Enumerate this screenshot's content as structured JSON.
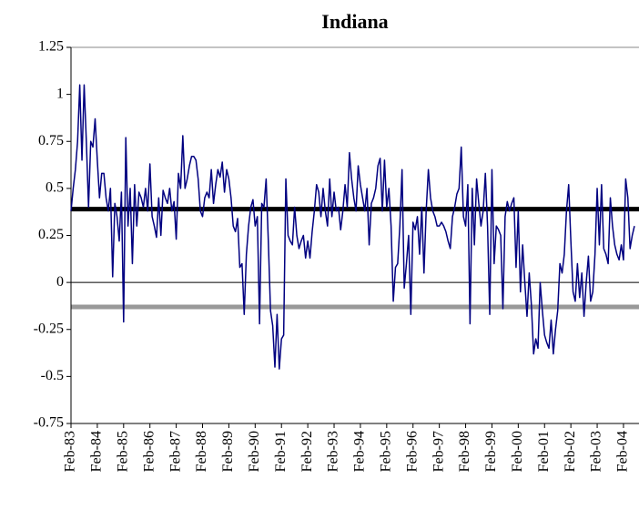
{
  "chart_data": {
    "type": "line",
    "title": "Indiana",
    "categories": [
      "Feb-83",
      null,
      null,
      null,
      null,
      null,
      null,
      null,
      null,
      null,
      null,
      null,
      "Feb-84",
      null,
      null,
      null,
      null,
      null,
      null,
      null,
      null,
      null,
      null,
      null,
      "Feb-85",
      null,
      null,
      null,
      null,
      null,
      null,
      null,
      null,
      null,
      null,
      null,
      "Feb-86",
      null,
      null,
      null,
      null,
      null,
      null,
      null,
      null,
      null,
      null,
      null,
      "Feb-87",
      null,
      null,
      null,
      null,
      null,
      null,
      null,
      null,
      null,
      null,
      null,
      "Feb-88",
      null,
      null,
      null,
      null,
      null,
      null,
      null,
      null,
      null,
      null,
      null,
      "Feb-89",
      null,
      null,
      null,
      null,
      null,
      null,
      null,
      null,
      null,
      null,
      null,
      "Feb-90",
      null,
      null,
      null,
      null,
      null,
      null,
      null,
      null,
      null,
      null,
      null,
      "Feb-91",
      null,
      null,
      null,
      null,
      null,
      null,
      null,
      null,
      null,
      null,
      null,
      "Feb-92",
      null,
      null,
      null,
      null,
      null,
      null,
      null,
      null,
      null,
      null,
      null,
      "Feb-93",
      null,
      null,
      null,
      null,
      null,
      null,
      null,
      null,
      null,
      null,
      null,
      "Feb-94",
      null,
      null,
      null,
      null,
      null,
      null,
      null,
      null,
      null,
      null,
      null,
      "Feb-95",
      null,
      null,
      null,
      null,
      null,
      null,
      null,
      null,
      null,
      null,
      null,
      "Feb-96",
      null,
      null,
      null,
      null,
      null,
      null,
      null,
      null,
      null,
      null,
      null,
      "Feb-97",
      null,
      null,
      null,
      null,
      null,
      null,
      null,
      null,
      null,
      null,
      null,
      "Feb-98",
      null,
      null,
      null,
      null,
      null,
      null,
      null,
      null,
      null,
      null,
      null,
      "Feb-99",
      null,
      null,
      null,
      null,
      null,
      null,
      null,
      null,
      null,
      null,
      null,
      "Feb-00",
      null,
      null,
      null,
      null,
      null,
      null,
      null,
      null,
      null,
      null,
      null,
      "Feb-01",
      null,
      null,
      null,
      null,
      null,
      null,
      null,
      null,
      null,
      null,
      null,
      "Feb-02",
      null,
      null,
      null,
      null,
      null,
      null,
      null,
      null,
      null,
      null,
      null,
      "Feb-03",
      null,
      null,
      null,
      null,
      null,
      null,
      null,
      null,
      null,
      null,
      null,
      "Feb-04",
      null,
      null,
      null,
      null,
      null
    ],
    "values": [
      0.38,
      0.5,
      0.6,
      0.75,
      1.05,
      0.65,
      1.05,
      0.75,
      0.4,
      0.75,
      0.72,
      0.87,
      0.65,
      0.45,
      0.58,
      0.58,
      0.45,
      0.38,
      0.5,
      0.03,
      0.42,
      0.35,
      0.22,
      0.48,
      -0.21,
      0.77,
      0.3,
      0.5,
      0.1,
      0.52,
      0.3,
      0.48,
      0.45,
      0.4,
      0.5,
      0.38,
      0.63,
      0.35,
      0.3,
      0.24,
      0.45,
      0.25,
      0.49,
      0.45,
      0.42,
      0.5,
      0.38,
      0.43,
      0.23,
      0.58,
      0.5,
      0.78,
      0.5,
      0.55,
      0.62,
      0.67,
      0.67,
      0.65,
      0.55,
      0.38,
      0.35,
      0.45,
      0.48,
      0.45,
      0.6,
      0.42,
      0.52,
      0.6,
      0.56,
      0.64,
      0.48,
      0.6,
      0.55,
      0.45,
      0.3,
      0.27,
      0.34,
      0.08,
      0.1,
      -0.17,
      0.15,
      0.3,
      0.4,
      0.44,
      0.3,
      0.35,
      -0.22,
      0.42,
      0.4,
      0.55,
      0.22,
      -0.15,
      -0.23,
      -0.45,
      -0.17,
      -0.46,
      -0.3,
      -0.28,
      0.55,
      0.25,
      0.22,
      0.2,
      0.4,
      0.25,
      0.18,
      0.22,
      0.25,
      0.13,
      0.22,
      0.13,
      0.27,
      0.38,
      0.52,
      0.48,
      0.35,
      0.5,
      0.38,
      0.3,
      0.55,
      0.35,
      0.48,
      0.38,
      0.4,
      0.28,
      0.38,
      0.52,
      0.4,
      0.69,
      0.55,
      0.45,
      0.38,
      0.62,
      0.52,
      0.45,
      0.38,
      0.5,
      0.2,
      0.42,
      0.45,
      0.5,
      0.62,
      0.66,
      0.38,
      0.65,
      0.4,
      0.5,
      0.3,
      -0.1,
      0.08,
      0.1,
      0.3,
      0.6,
      -0.03,
      0.1,
      0.25,
      -0.17,
      0.32,
      0.28,
      0.35,
      0.15,
      0.4,
      0.05,
      0.38,
      0.6,
      0.45,
      0.38,
      0.35,
      0.3,
      0.3,
      0.32,
      0.3,
      0.27,
      0.22,
      0.18,
      0.35,
      0.4,
      0.47,
      0.5,
      0.72,
      0.35,
      0.3,
      0.52,
      -0.22,
      0.5,
      0.2,
      0.55,
      0.42,
      0.3,
      0.38,
      0.58,
      0.3,
      -0.17,
      0.6,
      0.1,
      0.3,
      0.28,
      0.25,
      -0.14,
      0.35,
      0.43,
      0.38,
      0.42,
      0.45,
      0.08,
      0.38,
      -0.05,
      0.2,
      0.0,
      -0.18,
      0.05,
      -0.12,
      -0.38,
      -0.3,
      -0.35,
      0.0,
      -0.15,
      -0.28,
      -0.32,
      -0.35,
      -0.2,
      -0.38,
      -0.25,
      -0.15,
      0.1,
      0.05,
      0.15,
      0.38,
      0.52,
      0.22,
      -0.05,
      -0.1,
      0.1,
      -0.08,
      0.05,
      -0.18,
      0.0,
      0.14,
      -0.1,
      -0.05,
      0.15,
      0.5,
      0.2,
      0.52,
      0.18,
      0.15,
      0.1,
      0.45,
      0.3,
      0.2,
      0.15,
      0.12,
      0.2,
      0.12,
      0.55,
      0.45,
      0.18,
      0.25,
      0.3
    ],
    "color": "#000080",
    "reference_lines": [
      {
        "value": 0.39,
        "color": "#000000"
      },
      {
        "value": -0.13,
        "color": "#999999"
      }
    ],
    "ylim": [
      -0.75,
      1.25
    ],
    "yticks": [
      1.25,
      1,
      0.75,
      0.5,
      0.25,
      0,
      -0.25,
      -0.5,
      -0.75
    ]
  }
}
